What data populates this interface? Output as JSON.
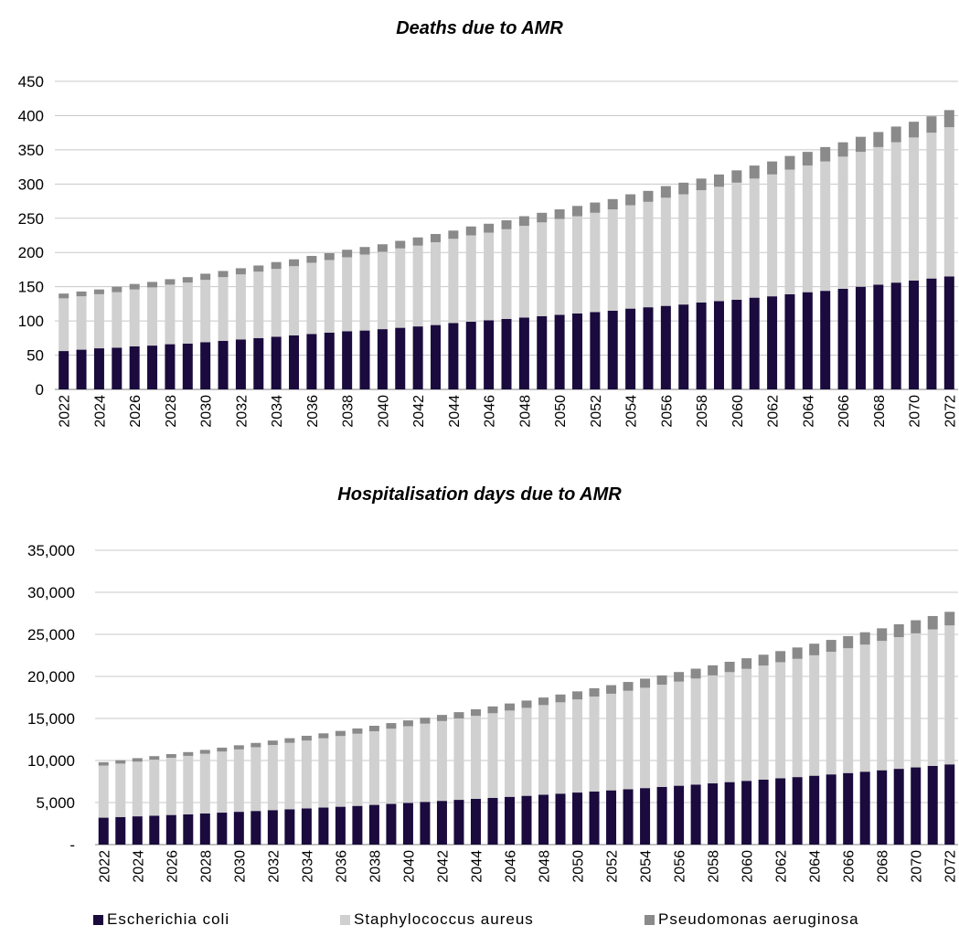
{
  "chart_data": [
    {
      "type": "bar",
      "stacked": true,
      "title": "Deaths due to AMR",
      "categories": [
        "2022",
        "2023",
        "2024",
        "2025",
        "2026",
        "2027",
        "2028",
        "2029",
        "2030",
        "2031",
        "2032",
        "2033",
        "2034",
        "2035",
        "2036",
        "2037",
        "2038",
        "2039",
        "2040",
        "2041",
        "2042",
        "2043",
        "2044",
        "2045",
        "2046",
        "2047",
        "2048",
        "2049",
        "2050",
        "2051",
        "2052",
        "2053",
        "2054",
        "2055",
        "2056",
        "2057",
        "2058",
        "2059",
        "2060",
        "2061",
        "2062",
        "2063",
        "2064",
        "2065",
        "2066",
        "2067",
        "2068",
        "2069",
        "2070",
        "2071",
        "2072"
      ],
      "xtick_labels": [
        "2022",
        "2024",
        "2026",
        "2028",
        "2030",
        "2032",
        "2034",
        "2036",
        "2038",
        "2040",
        "2042",
        "2044",
        "2046",
        "2048",
        "2050",
        "2052",
        "2054",
        "2056",
        "2058",
        "2060",
        "2062",
        "2064",
        "2066",
        "2068",
        "2070",
        "2072"
      ],
      "ylim": [
        0,
        450
      ],
      "yticks": [
        0,
        50,
        100,
        150,
        200,
        250,
        300,
        350,
        400,
        450
      ],
      "ytick_labels": [
        "0",
        "50",
        "100",
        "150",
        "200",
        "250",
        "300",
        "350",
        "400",
        "450"
      ],
      "grid": true,
      "series": [
        {
          "name": "Escherichia coli",
          "color": "#1a0a3d",
          "values": [
            56,
            58,
            60,
            61,
            63,
            64,
            66,
            67,
            69,
            71,
            73,
            75,
            77,
            79,
            81,
            83,
            85,
            86,
            88,
            90,
            92,
            94,
            97,
            99,
            101,
            103,
            105,
            107,
            109,
            111,
            113,
            115,
            118,
            120,
            122,
            124,
            127,
            129,
            131,
            134,
            136,
            139,
            142,
            144,
            147,
            150,
            153,
            156,
            159,
            162,
            165
          ]
        },
        {
          "name": "Staphylococcus aureus",
          "color": "#d0d0d0",
          "values": [
            77,
            78,
            79,
            81,
            83,
            85,
            87,
            89,
            91,
            93,
            95,
            97,
            99,
            101,
            104,
            106,
            108,
            111,
            113,
            116,
            118,
            121,
            123,
            126,
            128,
            131,
            134,
            137,
            140,
            142,
            145,
            148,
            151,
            154,
            158,
            161,
            164,
            167,
            171,
            174,
            178,
            182,
            185,
            189,
            193,
            197,
            201,
            205,
            209,
            213,
            218
          ]
        },
        {
          "name": "Pseudomonas aeruginosa",
          "color": "#8a8a8a",
          "values": [
            7,
            7,
            7,
            8,
            8,
            8,
            8,
            8,
            9,
            9,
            9,
            9,
            10,
            10,
            10,
            10,
            11,
            11,
            11,
            11,
            12,
            12,
            12,
            13,
            13,
            13,
            14,
            14,
            14,
            15,
            15,
            15,
            16,
            16,
            17,
            17,
            17,
            18,
            18,
            19,
            19,
            20,
            20,
            21,
            21,
            22,
            22,
            23,
            23,
            24,
            25
          ]
        }
      ]
    },
    {
      "type": "bar",
      "stacked": true,
      "title": "Hospitalisation days due to AMR",
      "categories": [
        "2022",
        "2023",
        "2024",
        "2025",
        "2026",
        "2027",
        "2028",
        "2029",
        "2030",
        "2031",
        "2032",
        "2033",
        "2034",
        "2035",
        "2036",
        "2037",
        "2038",
        "2039",
        "2040",
        "2041",
        "2042",
        "2043",
        "2044",
        "2045",
        "2046",
        "2047",
        "2048",
        "2049",
        "2050",
        "2051",
        "2052",
        "2053",
        "2054",
        "2055",
        "2056",
        "2057",
        "2058",
        "2059",
        "2060",
        "2061",
        "2062",
        "2063",
        "2064",
        "2065",
        "2066",
        "2067",
        "2068",
        "2069",
        "2070",
        "2071",
        "2072"
      ],
      "xtick_labels": [
        "2022",
        "2024",
        "2026",
        "2028",
        "2030",
        "2032",
        "2034",
        "2036",
        "2038",
        "2040",
        "2042",
        "2044",
        "2046",
        "2048",
        "2050",
        "2052",
        "2054",
        "2056",
        "2058",
        "2060",
        "2062",
        "2064",
        "2066",
        "2068",
        "2070",
        "2072"
      ],
      "ylim": [
        0,
        35000
      ],
      "yticks": [
        0,
        5000,
        10000,
        15000,
        20000,
        25000,
        30000,
        35000
      ],
      "ytick_labels": [
        "-",
        "5,000",
        "10,000",
        "15,000",
        "20,000",
        "25,000",
        "30,000",
        "35,000"
      ],
      "grid": true,
      "series": [
        {
          "name": "Escherichia coli",
          "color": "#1a0a3d",
          "values": [
            3200,
            3280,
            3360,
            3440,
            3520,
            3600,
            3700,
            3800,
            3900,
            4000,
            4100,
            4200,
            4300,
            4400,
            4500,
            4600,
            4720,
            4840,
            4960,
            5080,
            5200,
            5320,
            5440,
            5560,
            5680,
            5800,
            5930,
            6060,
            6190,
            6320,
            6450,
            6580,
            6720,
            6860,
            7000,
            7140,
            7280,
            7430,
            7580,
            7730,
            7880,
            8030,
            8190,
            8350,
            8510,
            8670,
            8840,
            9010,
            9180,
            9360,
            9540
          ]
        },
        {
          "name": "Staphylococcus aureus",
          "color": "#d0d0d0",
          "values": [
            6200,
            6350,
            6500,
            6650,
            6800,
            6950,
            7100,
            7260,
            7420,
            7580,
            7740,
            7900,
            8070,
            8240,
            8410,
            8580,
            8760,
            8940,
            9120,
            9300,
            9490,
            9680,
            9870,
            10060,
            10260,
            10460,
            10660,
            10860,
            11070,
            11280,
            11490,
            11710,
            11930,
            12150,
            12380,
            12610,
            12840,
            13080,
            13320,
            13560,
            13810,
            14060,
            14320,
            14580,
            14840,
            15110,
            15380,
            15660,
            15940,
            16230,
            16520
          ]
        },
        {
          "name": "Pseudomonas aeruginosa",
          "color": "#8a8a8a",
          "values": [
            400,
            410,
            420,
            430,
            440,
            450,
            460,
            470,
            490,
            510,
            530,
            550,
            570,
            590,
            610,
            630,
            650,
            670,
            690,
            710,
            730,
            750,
            780,
            810,
            840,
            870,
            900,
            930,
            960,
            990,
            1020,
            1050,
            1080,
            1110,
            1140,
            1170,
            1200,
            1230,
            1260,
            1290,
            1320,
            1350,
            1380,
            1410,
            1440,
            1470,
            1500,
            1530,
            1560,
            1590,
            1620
          ]
        }
      ]
    }
  ],
  "legend": [
    {
      "label": "Escherichia coli",
      "color": "#1a0a3d"
    },
    {
      "label": "Staphylococcus aureus",
      "color": "#d0d0d0"
    },
    {
      "label": "Pseudomonas aeruginosa",
      "color": "#8a8a8a"
    }
  ]
}
